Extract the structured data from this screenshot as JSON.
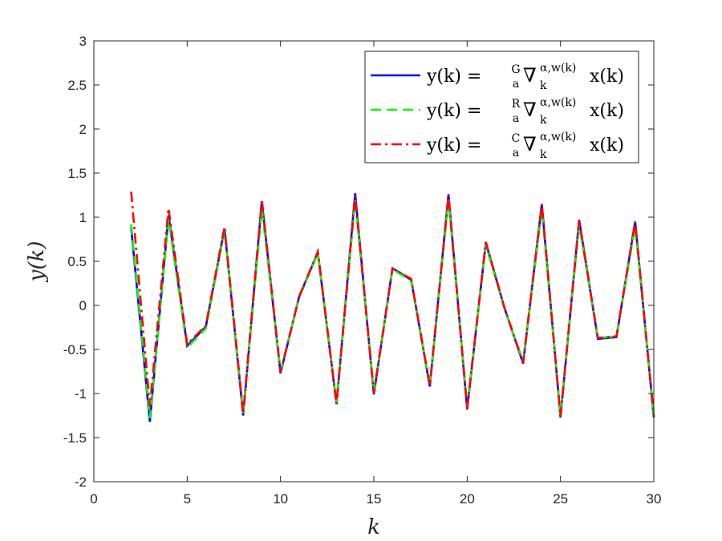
{
  "chart_data": {
    "type": "line",
    "xlabel": "k",
    "ylabel": "y(k)",
    "xlim": [
      0,
      30
    ],
    "ylim": [
      -2,
      3
    ],
    "xticks": [
      0,
      5,
      10,
      15,
      20,
      25,
      30
    ],
    "yticks": [
      -2,
      -1.5,
      -1,
      -0.5,
      0,
      0.5,
      1,
      1.5,
      2,
      2.5,
      3
    ],
    "xtick_labels": [
      "0",
      "5",
      "10",
      "15",
      "20",
      "25",
      "30"
    ],
    "ytick_labels": [
      "-2",
      "-1.5",
      "-1",
      "-0.5",
      "0",
      "0.5",
      "1",
      "1.5",
      "2",
      "2.5",
      "3"
    ],
    "grid": false,
    "legend_position": "top-right",
    "x": [
      2,
      3,
      4,
      5,
      6,
      7,
      8,
      9,
      10,
      11,
      12,
      13,
      14,
      15,
      16,
      17,
      18,
      19,
      20,
      21,
      22,
      23,
      24,
      25,
      26,
      27,
      28,
      29,
      30
    ],
    "series": [
      {
        "name": "y(k) = G a ∇ k α,w(k) x(k)",
        "legend": {
          "lhs": "y(k) =",
          "sup": "G",
          "sub": "a",
          "op": "∇",
          "sub2": "k",
          "sup2": "α,w(k)",
          "rhs": "x(k)"
        },
        "color": "#0000ff",
        "dash": "solid",
        "values": [
          0.88,
          -1.32,
          1.02,
          -0.46,
          -0.24,
          0.87,
          -1.25,
          1.18,
          -0.77,
          0.1,
          0.6,
          -1.12,
          1.27,
          -1.01,
          0.42,
          0.29,
          -0.92,
          1.26,
          -1.18,
          0.71,
          -0.03,
          -0.66,
          1.15,
          -1.27,
          0.97,
          -0.38,
          -0.36,
          0.95,
          -1.27
        ]
      },
      {
        "name": "y(k) = R a ∇ k α,w(k) x(k)",
        "legend": {
          "lhs": "y(k) =",
          "sup": "R",
          "sub": "a",
          "op": "∇",
          "sub2": "k",
          "sup2": "α,w(k)",
          "rhs": "x(k)"
        },
        "color": "#00ff00",
        "dash": "dashed",
        "values": [
          0.92,
          -1.28,
          0.98,
          -0.48,
          -0.26,
          0.85,
          -1.22,
          1.1,
          -0.75,
          0.09,
          0.59,
          -1.1,
          1.2,
          -0.98,
          0.41,
          0.28,
          -0.9,
          1.2,
          -1.15,
          0.69,
          -0.04,
          -0.64,
          1.09,
          -1.24,
          0.92,
          -0.37,
          -0.35,
          0.9,
          -1.24
        ]
      },
      {
        "name": "y(k) = C a ∇ k α,w(k) x(k)",
        "legend": {
          "lhs": "y(k) =",
          "sup": "C",
          "sub": "a",
          "op": "∇",
          "sub2": "k",
          "sup2": "α,w(k)",
          "rhs": "x(k)"
        },
        "color": "#ff0000",
        "dash": "dashdot",
        "values": [
          1.29,
          -1.15,
          1.1,
          -0.44,
          -0.23,
          0.89,
          -1.23,
          1.2,
          -0.76,
          0.1,
          0.61,
          -1.12,
          1.24,
          -1.0,
          0.42,
          0.3,
          -0.91,
          1.25,
          -1.17,
          0.72,
          -0.03,
          -0.65,
          1.15,
          -1.26,
          0.97,
          -0.37,
          -0.35,
          0.95,
          -1.26
        ]
      }
    ]
  }
}
